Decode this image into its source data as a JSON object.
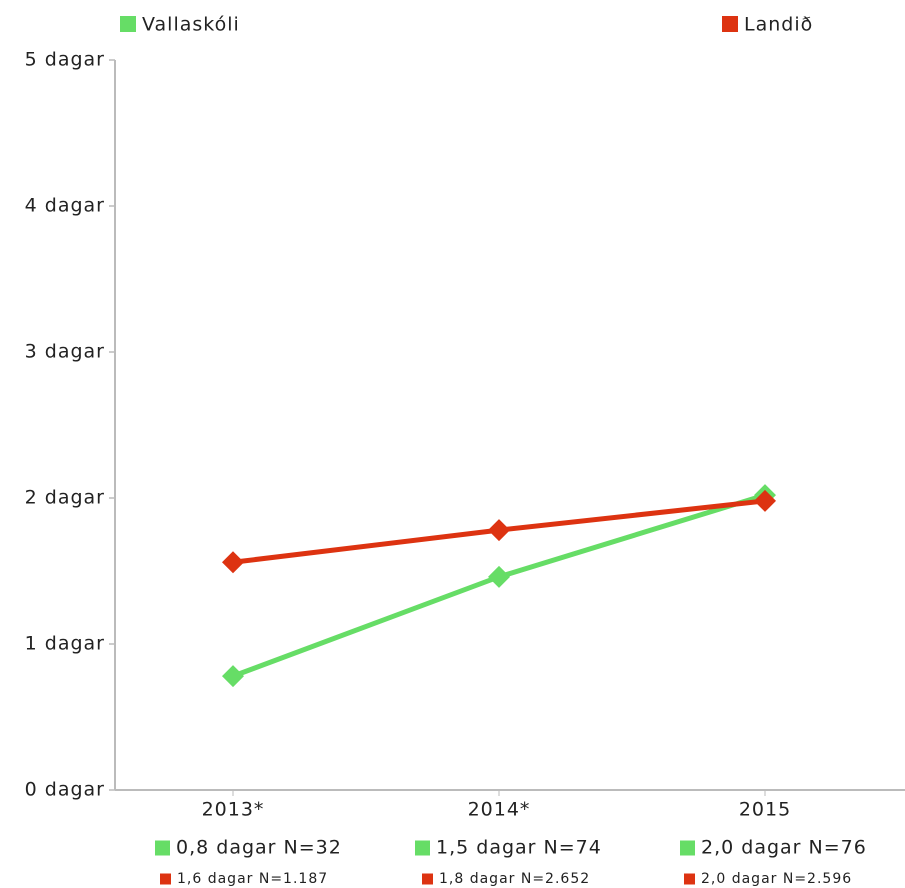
{
  "chart_data": {
    "type": "line",
    "categories": [
      "2013*",
      "2014*",
      "2015"
    ],
    "series": [
      {
        "name": "Vallaskóli",
        "color": "#66dd66",
        "values": [
          0.78,
          1.46,
          2.02
        ],
        "value_labels": [
          "0,8 dagar N=32",
          "1,5 dagar N=74",
          "2,0 dagar N=76"
        ]
      },
      {
        "name": "Landið",
        "color": "#dd3311",
        "values": [
          1.56,
          1.78,
          1.98
        ],
        "value_labels": [
          "1,6 dagar N=1.187",
          "1,8 dagar N=2.652",
          "2,0 dagar N=2.596"
        ]
      }
    ],
    "ylim": [
      0,
      5
    ],
    "yticks": [
      {
        "value": 0,
        "label": "0 dagar"
      },
      {
        "value": 1,
        "label": "1 dagar"
      },
      {
        "value": 2,
        "label": "2 dagar"
      },
      {
        "value": 3,
        "label": "3 dagar"
      },
      {
        "value": 4,
        "label": "4 dagar"
      },
      {
        "value": 5,
        "label": "5 dagar"
      }
    ]
  }
}
